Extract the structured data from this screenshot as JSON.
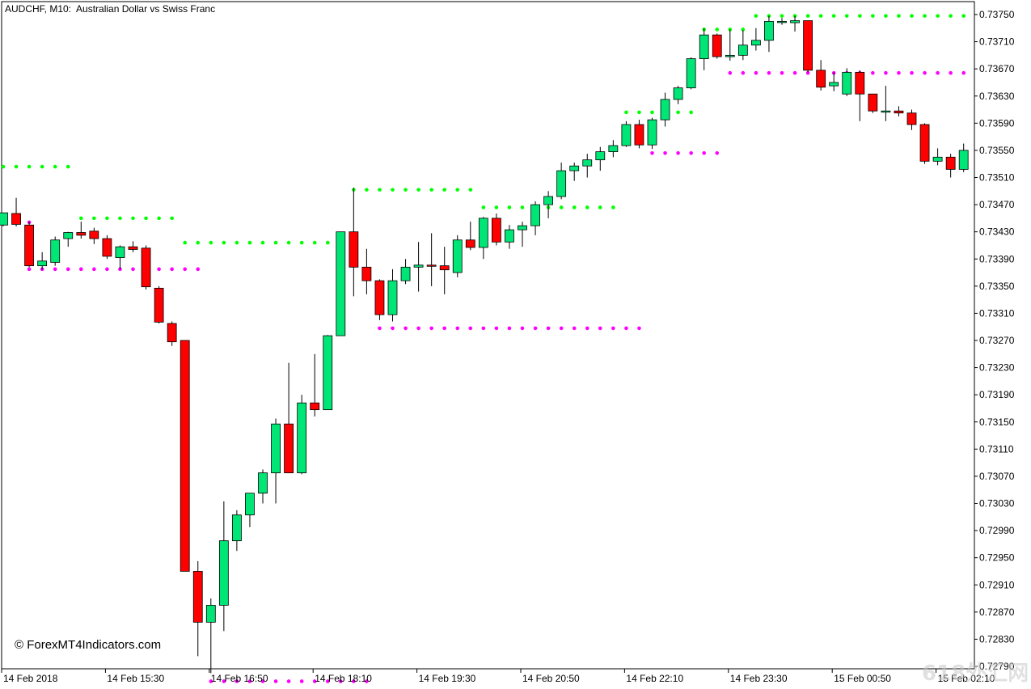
{
  "header": {
    "symbol_label": "AUDCHF, M10:",
    "description": "Australian Dollar vs Swiss Franc"
  },
  "watermark": "© ForexMT4Indicators.com",
  "corner_logo": "618外汇网",
  "colors": {
    "background": "#ffffff",
    "bull_candle": "#00e676",
    "bear_candle": "#ff0000",
    "wick": "#000000",
    "resistance_dots": "#00ff00",
    "support_dots": "#ff00ff",
    "grid_frame": "#000000"
  },
  "chart_data": {
    "type": "candlestick",
    "symbol": "AUDCHF",
    "timeframe": "M10",
    "price_axis_ticks": [
      "0.73750",
      "0.73710",
      "0.73670",
      "0.73630",
      "0.73590",
      "0.73550",
      "0.73510",
      "0.73470",
      "0.73430",
      "0.73390",
      "0.73350",
      "0.73310",
      "0.73270",
      "0.73230",
      "0.73190",
      "0.73150",
      "0.73110",
      "0.73070",
      "0.73030",
      "0.72990",
      "0.72950",
      "0.72910",
      "0.72870",
      "0.72830",
      "0.72790"
    ],
    "time_axis_ticks": [
      "14 Feb 2018",
      "14 Feb 15:30",
      "14 Feb 16:50",
      "14 Feb 18:10",
      "14 Feb 19:30",
      "14 Feb 20:50",
      "14 Feb 22:10",
      "14 Feb 23:30",
      "15 Feb 00:50",
      "15 Feb 02:10"
    ],
    "ylim": [
      0.7277,
      0.73768
    ],
    "candles": [
      [
        0.7344,
        0.73458,
        0.73438,
        0.73458
      ],
      [
        0.73457,
        0.7348,
        0.73438,
        0.73441
      ],
      [
        0.7344,
        0.73445,
        0.73378,
        0.7338
      ],
      [
        0.7338,
        0.734,
        0.73374,
        0.73387
      ],
      [
        0.73385,
        0.73423,
        0.7338,
        0.73418
      ],
      [
        0.7342,
        0.7343,
        0.73408,
        0.73429
      ],
      [
        0.73429,
        0.73445,
        0.7342,
        0.73425
      ],
      [
        0.73431,
        0.73436,
        0.73412,
        0.7342
      ],
      [
        0.7342,
        0.73425,
        0.7339,
        0.73394
      ],
      [
        0.73392,
        0.7341,
        0.73375,
        0.73408
      ],
      [
        0.73408,
        0.73416,
        0.734,
        0.73404
      ],
      [
        0.73406,
        0.7341,
        0.73345,
        0.73349
      ],
      [
        0.73347,
        0.7335,
        0.73295,
        0.73297
      ],
      [
        0.73295,
        0.73298,
        0.73262,
        0.73268
      ],
      [
        0.7327,
        0.7327,
        0.7293,
        0.7293
      ],
      [
        0.7293,
        0.72945,
        0.72805,
        0.72855
      ],
      [
        0.72855,
        0.7289,
        0.7278,
        0.7288
      ],
      [
        0.7288,
        0.73033,
        0.72842,
        0.72975
      ],
      [
        0.72975,
        0.7302,
        0.7296,
        0.73013
      ],
      [
        0.73013,
        0.73045,
        0.72995,
        0.73045
      ],
      [
        0.73045,
        0.7308,
        0.7303,
        0.73075
      ],
      [
        0.73075,
        0.73155,
        0.7303,
        0.73147
      ],
      [
        0.73147,
        0.73237,
        0.73075,
        0.73075
      ],
      [
        0.73075,
        0.7319,
        0.73073,
        0.73178
      ],
      [
        0.73178,
        0.7325,
        0.73158,
        0.73168
      ],
      [
        0.73168,
        0.73278,
        0.73168,
        0.73277
      ],
      [
        0.73277,
        0.7343,
        0.73277,
        0.7343
      ],
      [
        0.7343,
        0.73495,
        0.73335,
        0.73378
      ],
      [
        0.73378,
        0.73405,
        0.73338,
        0.73358
      ],
      [
        0.73358,
        0.7336,
        0.733,
        0.73308
      ],
      [
        0.73308,
        0.73375,
        0.73298,
        0.73358
      ],
      [
        0.73358,
        0.7339,
        0.73353,
        0.73378
      ],
      [
        0.73378,
        0.73415,
        0.73342,
        0.73381
      ],
      [
        0.73381,
        0.73428,
        0.7335,
        0.7338
      ],
      [
        0.7338,
        0.73408,
        0.73338,
        0.73374
      ],
      [
        0.7337,
        0.73425,
        0.73363,
        0.73418
      ],
      [
        0.73418,
        0.73445,
        0.73403,
        0.73407
      ],
      [
        0.73407,
        0.73452,
        0.7339,
        0.7345
      ],
      [
        0.7345,
        0.73457,
        0.7341,
        0.73415
      ],
      [
        0.73415,
        0.7344,
        0.73405,
        0.73433
      ],
      [
        0.73433,
        0.73445,
        0.73408,
        0.73439
      ],
      [
        0.73439,
        0.73475,
        0.73425,
        0.7347
      ],
      [
        0.7347,
        0.7349,
        0.7345,
        0.73482
      ],
      [
        0.73482,
        0.73532,
        0.73478,
        0.7352
      ],
      [
        0.7352,
        0.73532,
        0.73505,
        0.73527
      ],
      [
        0.73527,
        0.73545,
        0.7351,
        0.73536
      ],
      [
        0.73536,
        0.73555,
        0.7352,
        0.73548
      ],
      [
        0.73548,
        0.73565,
        0.7354,
        0.73557
      ],
      [
        0.73557,
        0.73593,
        0.73555,
        0.73588
      ],
      [
        0.73588,
        0.73595,
        0.73553,
        0.73558
      ],
      [
        0.73558,
        0.73598,
        0.73552,
        0.73595
      ],
      [
        0.73595,
        0.73635,
        0.73585,
        0.73625
      ],
      [
        0.73625,
        0.73645,
        0.73618,
        0.73642
      ],
      [
        0.73642,
        0.73687,
        0.7364,
        0.73685
      ],
      [
        0.73685,
        0.7373,
        0.73668,
        0.7372
      ],
      [
        0.7372,
        0.73722,
        0.73685,
        0.73688
      ],
      [
        0.73688,
        0.73728,
        0.73682,
        0.7369
      ],
      [
        0.7369,
        0.73727,
        0.73683,
        0.73705
      ],
      [
        0.73705,
        0.7373,
        0.73697,
        0.73712
      ],
      [
        0.73712,
        0.73748,
        0.73695,
        0.7374
      ],
      [
        0.7374,
        0.73745,
        0.73735,
        0.7374
      ],
      [
        0.73738,
        0.73748,
        0.73725,
        0.73741
      ],
      [
        0.73741,
        0.73741,
        0.73665,
        0.73668
      ],
      [
        0.73668,
        0.73683,
        0.73638,
        0.73643
      ],
      [
        0.73645,
        0.73665,
        0.73637,
        0.7365
      ],
      [
        0.73633,
        0.73671,
        0.7363,
        0.73665
      ],
      [
        0.73665,
        0.73668,
        0.73593,
        0.73633
      ],
      [
        0.73633,
        0.73633,
        0.73605,
        0.73608
      ],
      [
        0.73608,
        0.73645,
        0.73593,
        0.73608
      ],
      [
        0.73608,
        0.73615,
        0.736,
        0.73605
      ],
      [
        0.73605,
        0.7361,
        0.7358,
        0.73588
      ],
      [
        0.73588,
        0.7359,
        0.7353,
        0.73534
      ],
      [
        0.73534,
        0.73553,
        0.73528,
        0.7354
      ],
      [
        0.7354,
        0.73545,
        0.7351,
        0.73522
      ],
      [
        0.73522,
        0.7356,
        0.73518,
        0.7355
      ],
      [
        0.7355,
        0.7357,
        0.7351,
        0.73518
      ]
    ],
    "resistance_levels": [
      {
        "price": 0.73526,
        "from": 0,
        "to": 5
      },
      {
        "price": 0.7345,
        "from": 6,
        "to": 13
      },
      {
        "price": 0.73414,
        "from": 14,
        "to": 25
      },
      {
        "price": 0.73492,
        "from": 27,
        "to": 36
      },
      {
        "price": 0.73466,
        "from": 37,
        "to": 47
      },
      {
        "price": 0.73606,
        "from": 48,
        "to": 53
      },
      {
        "price": 0.73728,
        "from": 54,
        "to": 57
      },
      {
        "price": 0.73748,
        "from": 58,
        "to": 75
      }
    ],
    "support_levels": [
      {
        "price": 0.73444,
        "from": 0,
        "to": 2
      },
      {
        "price": 0.73375,
        "from": 2,
        "to": 15
      },
      {
        "price": 0.72768,
        "from": 16,
        "to": 28
      },
      {
        "price": 0.73288,
        "from": 29,
        "to": 49
      },
      {
        "price": 0.73546,
        "from": 50,
        "to": 55
      },
      {
        "price": 0.73664,
        "from": 56,
        "to": 74
      },
      {
        "price": 0.73507,
        "from": 75,
        "to": 75
      }
    ]
  }
}
